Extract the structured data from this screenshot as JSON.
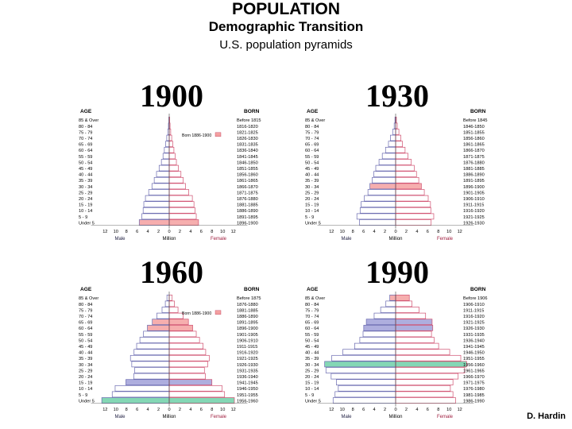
{
  "header": {
    "title": "POPULATION",
    "subtitle": "Demographic Transition",
    "caption": "U.S. population pyramids"
  },
  "credit": "D. Hardin",
  "colors": {
    "male_bar": "#6a6ab0",
    "female_bar": "#d05070",
    "highlight_green": "#6fd0a8",
    "highlight_pink": "#f4a0a0",
    "highlight_blue": "#a0a0d8"
  },
  "panels": [
    {
      "year": "1900",
      "age_header": "AGE",
      "born_header": "BORN",
      "ages": [
        "85 & Over",
        "80 - 84",
        "75 - 79",
        "70 - 74",
        "65 - 69",
        "60 - 64",
        "55 - 59",
        "50 - 54",
        "45 - 49",
        "40 - 44",
        "35 - 39",
        "30 - 34",
        "25 - 29",
        "20 - 24",
        "15 - 19",
        "10 - 14",
        "5 - 9",
        "Under 5"
      ],
      "born": [
        "Before 1815",
        "1816-1820",
        "1821-1825",
        "1826-1830",
        "1831-1835",
        "1836-1840",
        "1841-1845",
        "1846-1850",
        "1851-1855",
        "1856-1860",
        "1861-1865",
        "1866-1870",
        "1871-1875",
        "1876-1880",
        "1881-1885",
        "1886-1890",
        "1891-1895",
        "1896-1900"
      ],
      "male": [
        0.06,
        0.12,
        0.22,
        0.38,
        0.55,
        0.75,
        0.95,
        1.2,
        1.55,
        1.95,
        2.3,
        2.65,
        3.15,
        3.65,
        3.9,
        4.0,
        4.2,
        4.6
      ],
      "female": [
        0.07,
        0.13,
        0.23,
        0.38,
        0.55,
        0.72,
        0.9,
        1.1,
        1.4,
        1.8,
        2.15,
        2.5,
        3.0,
        3.55,
        3.8,
        3.95,
        4.15,
        4.5
      ],
      "annotation": "Born 1886-1900",
      "highlight_rows": [
        {
          "row": 17,
          "color": "#f4a0a0"
        }
      ],
      "x_ticks": [
        "12",
        "10",
        "8",
        "6",
        "4",
        "2",
        "0",
        "2",
        "4",
        "6",
        "8",
        "10",
        "12"
      ],
      "male_label": "Male",
      "million_label": "Million",
      "female_label": "Female"
    },
    {
      "year": "1930",
      "age_header": "AGE",
      "born_header": "BORN",
      "ages": [
        "85 & Over",
        "80 - 84",
        "75 - 79",
        "70 - 74",
        "65 - 69",
        "60 - 64",
        "55 - 59",
        "50 - 54",
        "45 - 49",
        "40 - 44",
        "35 - 39",
        "30 - 34",
        "25 - 29",
        "20 - 24",
        "15 - 19",
        "10 - 14",
        "5 - 9",
        "Under 5"
      ],
      "born": [
        "Before 1845",
        "1846-1850",
        "1851-1855",
        "1856-1860",
        "1861-1865",
        "1866-1870",
        "1871-1875",
        "1876-1880",
        "1881-1885",
        "1886-1890",
        "1891-1895",
        "1896-1900",
        "1901-1905",
        "1906-1910",
        "1911-1915",
        "1916-1920",
        "1921-1925",
        "1926-1930"
      ],
      "male": [
        0.1,
        0.22,
        0.45,
        0.8,
        1.1,
        1.55,
        2.05,
        2.55,
        3.05,
        3.35,
        3.6,
        3.95,
        4.25,
        4.8,
        5.3,
        5.45,
        5.95,
        5.55
      ],
      "female": [
        0.12,
        0.25,
        0.5,
        0.8,
        1.05,
        1.45,
        1.9,
        2.4,
        2.85,
        3.2,
        3.55,
        3.95,
        4.4,
        5.0,
        5.35,
        5.4,
        5.85,
        5.45
      ],
      "annotation": "",
      "highlight_rows": [
        {
          "row": 11,
          "color": "#f4a0a0"
        }
      ],
      "x_ticks": [
        "12",
        "10",
        "8",
        "6",
        "4",
        "2",
        "0",
        "2",
        "4",
        "6",
        "8",
        "10",
        "12"
      ],
      "male_label": "Male",
      "million_label": "Million",
      "female_label": "Female"
    },
    {
      "year": "1960",
      "age_header": "AGE",
      "born_header": "BORN",
      "ages": [
        "85 & Over",
        "80 - 84",
        "75 - 79",
        "70 - 74",
        "65 - 69",
        "60 - 64",
        "55 - 59",
        "50 - 54",
        "45 - 49",
        "40 - 44",
        "35 - 39",
        "30 - 34",
        "25 - 29",
        "20 - 24",
        "15 - 19",
        "10 - 14",
        "5 - 9",
        "Under 5"
      ],
      "born": [
        "Before 1875",
        "1876-1880",
        "1881-1885",
        "1886-1890",
        "1891-1895",
        "1896-1900",
        "1901-1905",
        "1906-1910",
        "1911-1915",
        "1916-1920",
        "1921-1925",
        "1926-1930",
        "1931-1935",
        "1936-1940",
        "1941-1945",
        "1946-1950",
        "1951-1955",
        "1956-1960"
      ],
      "male": [
        0.35,
        0.6,
        1.1,
        1.9,
        2.6,
        3.35,
        3.95,
        4.5,
        5.0,
        5.4,
        5.95,
        5.75,
        5.3,
        5.45,
        6.65,
        8.3,
        8.75,
        10.35
      ],
      "female": [
        0.45,
        0.8,
        1.35,
        2.15,
        2.95,
        3.6,
        4.15,
        4.65,
        5.2,
        5.6,
        6.15,
        5.9,
        5.4,
        5.55,
        6.55,
        8.1,
        8.5,
        10.0
      ],
      "annotation": "Born 1886-1900",
      "highlight_rows": [
        {
          "row": 4,
          "color": "#f4a0a0"
        },
        {
          "row": 5,
          "color": "#f4a0a0"
        },
        {
          "row": 14,
          "color": "#a0a0d8"
        },
        {
          "row": 17,
          "color": "#6fd0a8"
        }
      ],
      "x_ticks": [
        "12",
        "10",
        "8",
        "6",
        "4",
        "2",
        "0",
        "2",
        "4",
        "6",
        "8",
        "10",
        "12"
      ],
      "male_label": "Male",
      "million_label": "Million",
      "female_label": "Female"
    },
    {
      "year": "1990",
      "age_header": "AGE",
      "born_header": "BORN",
      "ages": [
        "85 & Over",
        "80 - 84",
        "75 - 79",
        "70 - 74",
        "65 - 69",
        "60 - 64",
        "55 - 59",
        "50 - 54",
        "45 - 49",
        "40 - 44",
        "35 - 39",
        "30 - 34",
        "25 - 29",
        "20 - 24",
        "15 - 19",
        "10 - 14",
        "5 - 9",
        "Under 5"
      ],
      "born": [
        "Before 1906",
        "1906-1910",
        "1911-1915",
        "1916-1920",
        "1921-1925",
        "1926-1930",
        "1931-1935",
        "1936-1940",
        "1941-1945",
        "1946-1950",
        "1951-1955",
        "1956-1960",
        "1961-1965",
        "1966-1970",
        "1971-1975",
        "1976-1980",
        "1981-1985",
        "1986-1990"
      ],
      "male": [
        0.9,
        1.5,
        2.3,
        3.3,
        4.5,
        4.9,
        5.0,
        5.5,
        6.3,
        8.1,
        9.8,
        10.9,
        10.7,
        9.9,
        9.1,
        8.8,
        9.3,
        9.6
      ],
      "female": [
        2.1,
        2.5,
        3.6,
        4.6,
        5.6,
        5.7,
        5.5,
        5.9,
        6.6,
        8.3,
        10.0,
        10.9,
        10.6,
        9.6,
        8.8,
        8.4,
        8.8,
        9.2
      ],
      "annotation": "",
      "highlight_rows": [
        {
          "row": 0,
          "color": "#f4a0a0"
        },
        {
          "row": 4,
          "color": "#a0a0d8"
        },
        {
          "row": 5,
          "color": "#a0a0d8"
        },
        {
          "row": 11,
          "color": "#6fd0a8"
        }
      ],
      "x_ticks": [
        "12",
        "10",
        "8",
        "6",
        "4",
        "2",
        "0",
        "2",
        "4",
        "6",
        "8",
        "10",
        "12"
      ],
      "male_label": "Male",
      "million_label": "Million",
      "female_label": "Female"
    }
  ]
}
